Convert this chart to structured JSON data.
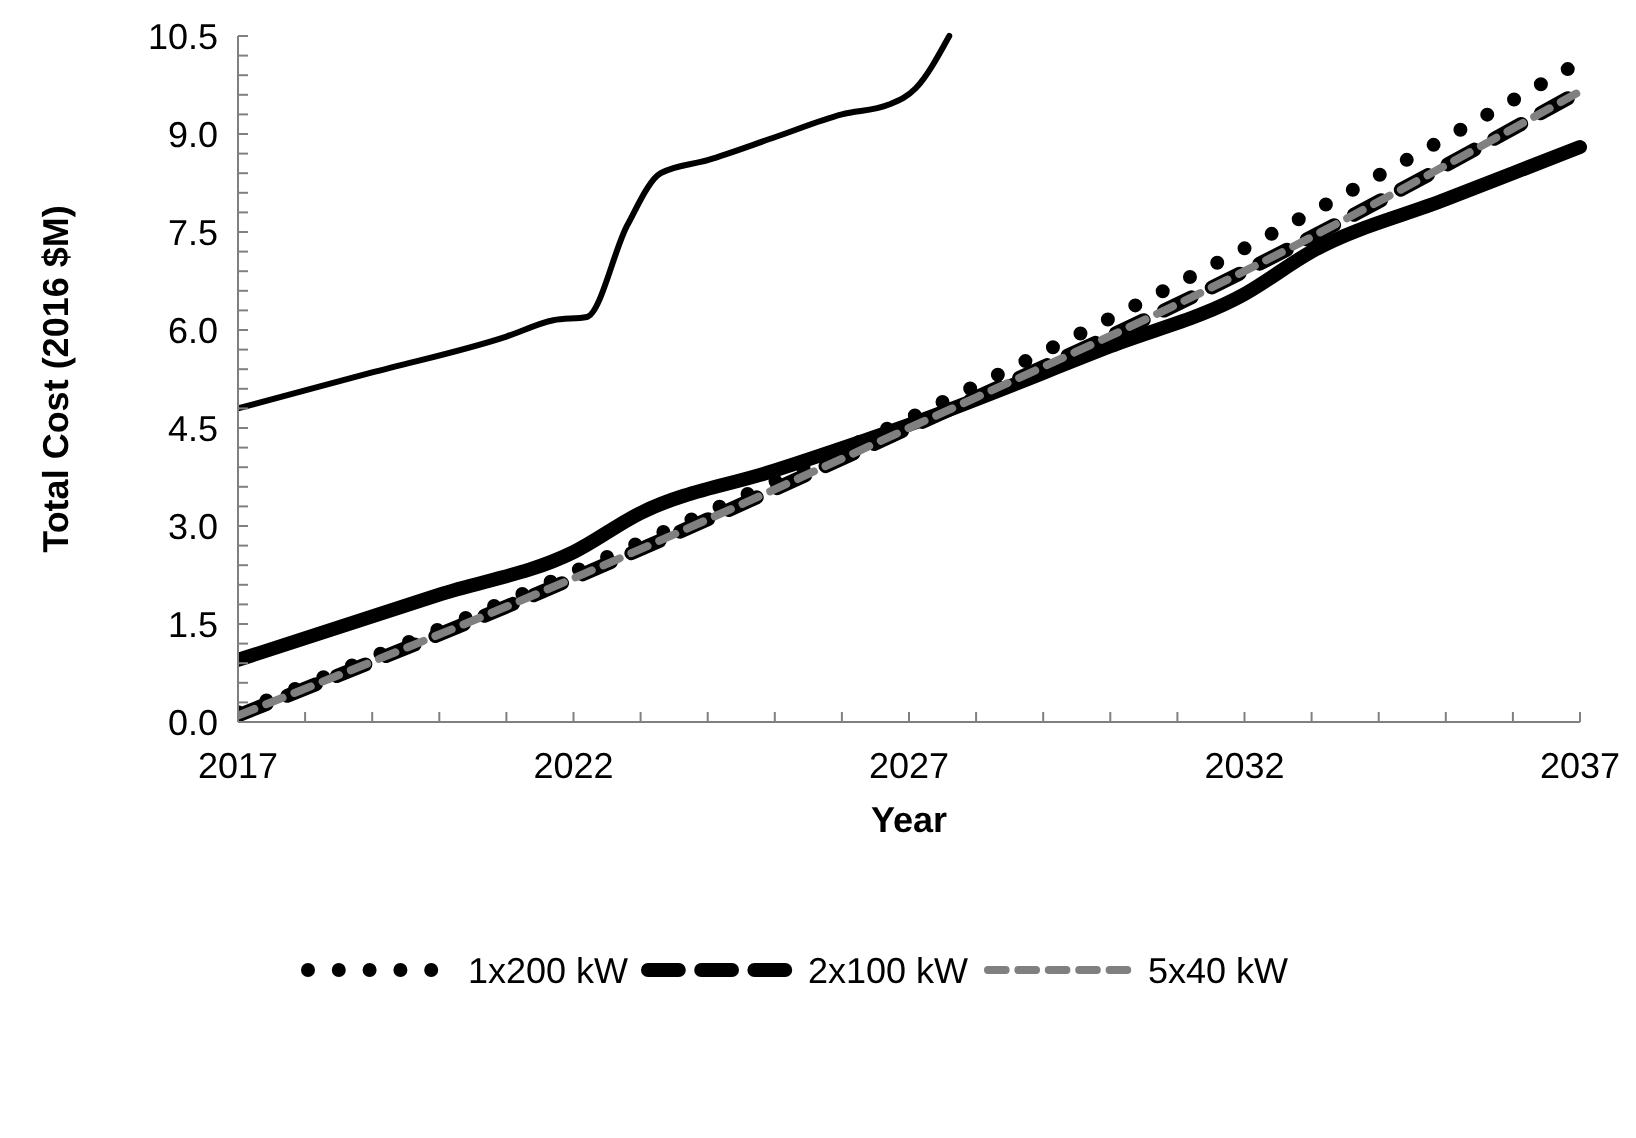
{
  "chart_data": {
    "type": "line",
    "xlabel": "Year",
    "ylabel": "Total Cost (2016 $M)",
    "xlim": [
      2017,
      2037
    ],
    "ylim": [
      0,
      10.5
    ],
    "xticks": [
      2017,
      {
        "value": 2018,
        "label": null
      },
      {
        "value": 2019,
        "label": null
      },
      {
        "value": 2020,
        "label": null
      },
      {
        "value": 2021,
        "label": null
      },
      2022,
      {
        "value": 2023,
        "label": null
      },
      {
        "value": 2024,
        "label": null
      },
      {
        "value": 2025,
        "label": null
      },
      {
        "value": 2026,
        "label": null
      },
      2027,
      {
        "value": 2028,
        "label": null
      },
      {
        "value": 2029,
        "label": null
      },
      {
        "value": 2030,
        "label": null
      },
      {
        "value": 2031,
        "label": null
      },
      2032,
      {
        "value": 2033,
        "label": null
      },
      {
        "value": 2034,
        "label": null
      },
      {
        "value": 2035,
        "label": null
      },
      {
        "value": 2036,
        "label": null
      },
      2037
    ],
    "yticks": [
      {
        "value": 0,
        "label": "0.0"
      },
      {
        "value": 0.3,
        "label": null
      },
      {
        "value": 0.6,
        "label": null
      },
      {
        "value": 0.9,
        "label": null
      },
      {
        "value": 1.2,
        "label": null
      },
      1.5,
      {
        "value": 1.8,
        "label": null
      },
      {
        "value": 2.1,
        "label": null
      },
      {
        "value": 2.4,
        "label": null
      },
      {
        "value": 2.7,
        "label": null
      },
      {
        "value": 3,
        "label": "3.0"
      },
      {
        "value": 3.3,
        "label": null
      },
      {
        "value": 3.6,
        "label": null
      },
      {
        "value": 3.9,
        "label": null
      },
      {
        "value": 4.2,
        "label": null
      },
      4.5,
      {
        "value": 4.8,
        "label": null
      },
      {
        "value": 5.1,
        "label": null
      },
      {
        "value": 5.4,
        "label": null
      },
      {
        "value": 5.7,
        "label": null
      },
      {
        "value": 6,
        "label": "6.0"
      },
      {
        "value": 6.3,
        "label": null
      },
      {
        "value": 6.6,
        "label": null
      },
      {
        "value": 6.9,
        "label": null
      },
      {
        "value": 7.2,
        "label": null
      },
      7.5,
      {
        "value": 7.8,
        "label": null
      },
      {
        "value": 8.1,
        "label": null
      },
      {
        "value": 8.4,
        "label": null
      },
      {
        "value": 8.7,
        "label": null
      },
      {
        "value": 9,
        "label": "9.0"
      },
      {
        "value": 9.3,
        "label": null
      },
      {
        "value": 9.6,
        "label": null
      },
      {
        "value": 9.9,
        "label": null
      },
      {
        "value": 10.2,
        "label": null
      },
      10.5
    ],
    "grid": false,
    "legend": "bottom",
    "series": [
      {
        "color": "#000000",
        "line_style": "solid",
        "x": [
          2017,
          2019,
          2021,
          2021.7,
          2022.2,
          2022.8,
          2023.3,
          2024,
          2025,
          2026,
          2026.7,
          2027.1,
          2027.6
        ],
        "values": [
          4.8,
          5.35,
          5.9,
          6.15,
          6.2,
          7.6,
          8.4,
          8.6,
          8.95,
          9.3,
          9.45,
          9.7,
          10.5
        ]
      },
      {
        "color": "#000000",
        "line_style": "solid",
        "x": [
          2017,
          2020,
          2022,
          2023,
          2025,
          2027,
          2030,
          2032,
          2033,
          2035,
          2037
        ],
        "values": [
          0.95,
          1.95,
          2.6,
          3.2,
          3.85,
          4.55,
          5.75,
          6.55,
          7.2,
          8.0,
          8.8
        ]
      },
      {
        "name": "1x200 kW",
        "color": "#000000",
        "line_style": "dotted",
        "x": [
          2017,
          2022,
          2027,
          2032,
          2037
        ],
        "values": [
          0.15,
          2.3,
          4.65,
          7.25,
          10.1
        ]
      },
      {
        "name": "2x100 kW",
        "color": "#000000",
        "line_style": "dashed",
        "x": [
          2017,
          2022,
          2027,
          2032,
          2037
        ],
        "values": [
          0.1,
          2.2,
          4.5,
          6.9,
          9.65
        ]
      },
      {
        "name": "5x40 kW",
        "color": "#808080",
        "line_style": "dashed",
        "x": [
          2017,
          2022,
          2027,
          2032,
          2037
        ],
        "values": [
          0.1,
          2.2,
          4.5,
          6.9,
          9.65
        ]
      }
    ]
  }
}
